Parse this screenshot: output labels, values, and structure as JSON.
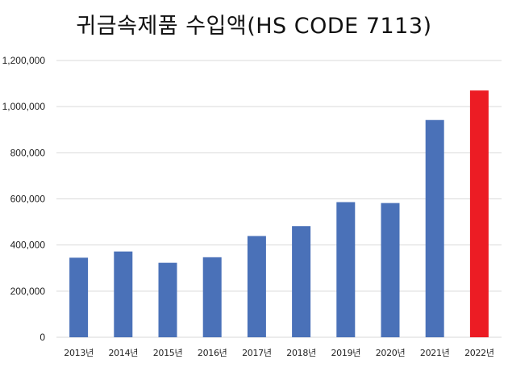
{
  "chart_data": {
    "type": "bar",
    "title": "귀금속제품 수입액(HS CODE 7113)",
    "xlabel": "",
    "ylabel": "",
    "ylim": [
      0,
      1200000
    ],
    "yticks": [
      0,
      200000,
      400000,
      600000,
      800000,
      1000000,
      1200000
    ],
    "ytick_labels": [
      "0",
      "200,000",
      "400,000",
      "600,000",
      "800,000",
      "1,000,000",
      "1,200,000"
    ],
    "grid": true,
    "categories": [
      "2013년",
      "2014년",
      "2015년",
      "2016년",
      "2017년",
      "2018년",
      "2019년",
      "2020년",
      "2021년",
      "2022년"
    ],
    "values": [
      345000,
      372000,
      323000,
      347000,
      439000,
      482000,
      586000,
      582000,
      942000,
      1070000
    ],
    "colors": [
      "#4a71b8",
      "#4a71b8",
      "#4a71b8",
      "#4a71b8",
      "#4a71b8",
      "#4a71b8",
      "#4a71b8",
      "#4a71b8",
      "#4a71b8",
      "#ec1c24"
    ]
  }
}
